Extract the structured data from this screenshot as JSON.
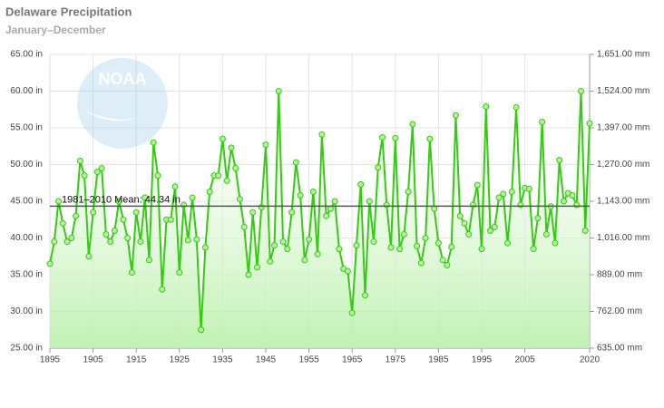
{
  "chart_data": {
    "type": "line",
    "title": "Delaware Precipitation",
    "subtitle": "January–December",
    "watermark": "NOAA",
    "x": [
      1895,
      1896,
      1897,
      1898,
      1899,
      1900,
      1901,
      1902,
      1903,
      1904,
      1905,
      1906,
      1907,
      1908,
      1909,
      1910,
      1911,
      1912,
      1913,
      1914,
      1915,
      1916,
      1917,
      1918,
      1919,
      1920,
      1921,
      1922,
      1923,
      1924,
      1925,
      1926,
      1927,
      1928,
      1929,
      1930,
      1931,
      1932,
      1933,
      1934,
      1935,
      1936,
      1937,
      1938,
      1939,
      1940,
      1941,
      1942,
      1943,
      1944,
      1945,
      1946,
      1947,
      1948,
      1949,
      1950,
      1951,
      1952,
      1953,
      1954,
      1955,
      1956,
      1957,
      1958,
      1959,
      1960,
      1961,
      1962,
      1963,
      1964,
      1965,
      1966,
      1967,
      1968,
      1969,
      1970,
      1971,
      1972,
      1973,
      1974,
      1975,
      1976,
      1977,
      1978,
      1979,
      1980,
      1981,
      1982,
      1983,
      1984,
      1985,
      1986,
      1987,
      1988,
      1989,
      1990,
      1991,
      1992,
      1993,
      1994,
      1995,
      1996,
      1997,
      1998,
      1999,
      2000,
      2001,
      2002,
      2003,
      2004,
      2005,
      2006,
      2007,
      2008,
      2009,
      2010,
      2011,
      2012,
      2013,
      2014,
      2015,
      2016,
      2017,
      2018,
      2019,
      2020
    ],
    "series": [
      {
        "name": "Precipitation",
        "color": "#33cc11",
        "values": [
          36.5,
          39.5,
          45,
          42,
          39.5,
          40,
          43,
          50.5,
          48.5,
          37.5,
          43.5,
          49,
          49.5,
          40.5,
          39.5,
          41,
          45,
          42.5,
          40,
          35.3,
          43.5,
          39.5,
          45.5,
          37,
          53,
          48.5,
          33,
          42.5,
          42.5,
          47,
          35.3,
          44.5,
          39.7,
          45.5,
          39.8,
          27.5,
          38.7,
          46.3,
          48.5,
          48.5,
          53.5,
          47.8,
          52.3,
          49.5,
          45.3,
          41.5,
          35,
          43.5,
          36,
          44.2,
          52.7,
          36.8,
          39,
          60,
          39.5,
          38.5,
          43.5,
          50.3,
          45.8,
          37,
          39.8,
          46.3,
          37.8,
          54.1,
          43,
          44,
          45,
          38.5,
          35.8,
          35.5,
          29.8,
          39,
          47.3,
          32.2,
          45,
          39.5,
          49.6,
          53.7,
          44.5,
          38.7,
          53.6,
          38.5,
          40.5,
          46.3,
          55.5,
          38.9,
          36.6,
          40,
          53.5,
          44,
          39.3,
          37,
          36.3,
          38.8,
          56.7,
          43,
          42,
          40.5,
          44.5,
          47.2,
          38.5,
          57.9,
          41,
          41.5,
          45.5,
          46,
          39.3,
          46.3,
          57.8,
          44.5,
          46.8,
          46.7,
          38.5,
          42.7,
          55.8,
          40.5,
          44.3,
          39.3,
          50.6,
          45,
          46.1,
          45.8,
          44.5,
          60,
          41,
          55.6
        ]
      }
    ],
    "annotation": {
      "label": "1981–2010 Mean: 44.34 in",
      "value": 44.34
    },
    "xlim": [
      1895,
      2020
    ],
    "xticks": [
      1895,
      1905,
      1915,
      1925,
      1935,
      1945,
      1955,
      1965,
      1975,
      1985,
      1995,
      2005,
      2020
    ],
    "ylim": [
      25,
      65
    ],
    "yticks": [
      {
        "value": 25,
        "label": "25.00 in"
      },
      {
        "value": 30,
        "label": "30.00 in"
      },
      {
        "value": 35,
        "label": "35.00 in"
      },
      {
        "value": 40,
        "label": "40.00 in"
      },
      {
        "value": 45,
        "label": "45.00 in"
      },
      {
        "value": 50,
        "label": "50.00 in"
      },
      {
        "value": 55,
        "label": "55.00 in"
      },
      {
        "value": 60,
        "label": "60.00 in"
      },
      {
        "value": 65,
        "label": "65.00 in"
      }
    ],
    "y2lim": [
      635,
      1651
    ],
    "y2ticks": [
      {
        "value": 635,
        "label": "635.00 mm"
      },
      {
        "value": 762,
        "label": "762.00 mm"
      },
      {
        "value": 889,
        "label": "889.00 mm"
      },
      {
        "value": 1016,
        "label": "1,016.00 mm"
      },
      {
        "value": 1143,
        "label": "1,143.00 mm"
      },
      {
        "value": 1270,
        "label": "1,270.00 mm"
      },
      {
        "value": 1397,
        "label": "1,397.00 mm"
      },
      {
        "value": 1524,
        "label": "1,524.00 mm"
      },
      {
        "value": 1651,
        "label": "1,651.00 mm"
      }
    ],
    "grid": true
  }
}
